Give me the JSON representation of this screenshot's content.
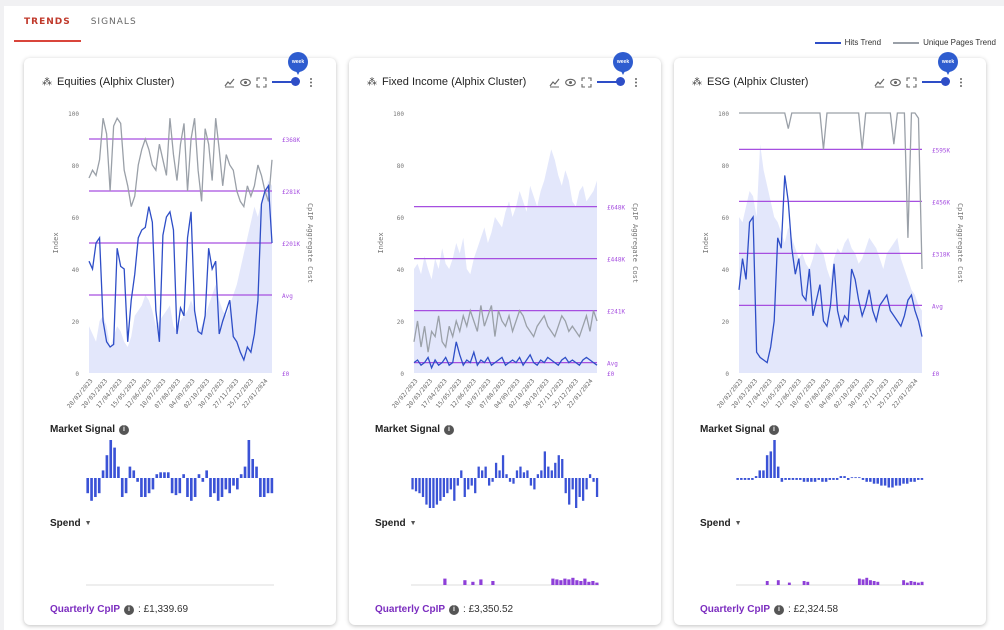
{
  "tabs": [
    {
      "label": "TRENDS",
      "active": true
    },
    {
      "label": "SIGNALS",
      "active": false
    }
  ],
  "legend": [
    {
      "label": "Hits Trend",
      "color": "#2e4ec7"
    },
    {
      "label": "Unique Pages Trend",
      "color": "#9aa0a8"
    }
  ],
  "pin_label": "week",
  "cards": [
    {
      "title": "Equities (Alphix Cluster)",
      "market_signal_label": "Market Signal",
      "spend_label": "Spend",
      "cpip_label": "Quarterly CpIP",
      "cpip_value": ": £1,339.69"
    },
    {
      "title": "Fixed Income (Alphix Cluster)",
      "market_signal_label": "Market Signal",
      "spend_label": "Spend",
      "cpip_label": "Quarterly CpIP",
      "cpip_value": ": £3,350.52"
    },
    {
      "title": "ESG (Alphix Cluster)",
      "market_signal_label": "Market Signal",
      "spend_label": "Spend",
      "cpip_label": "Quarterly CpIP",
      "cpip_value": ": £2,324.58"
    }
  ],
  "colors": {
    "hits": "#2e4ec7",
    "unique_pages": "#9aa0a8",
    "area": "#e3e7fb",
    "reference": "#a64fe0",
    "signal": "#3a52d6",
    "spend": "#8e3fd8",
    "cpip_label": "#7b2cbf"
  },
  "chart_data": [
    {
      "type": "line",
      "title": "Equities (Alphix Cluster)",
      "ylabel": "Index",
      "y2label": "CpIP Aggregate Cost",
      "ylim": [
        0,
        100
      ],
      "yticks": [
        0,
        20,
        40,
        60,
        80,
        100
      ],
      "x_ticks": [
        "20/02/2023",
        "20/03/2023",
        "17/04/2023",
        "15/05/2023",
        "12/06/2023",
        "10/07/2023",
        "07/08/2023",
        "04/09/2023",
        "02/10/2023",
        "30/10/2023",
        "27/11/2023",
        "25/12/2023",
        "22/01/2024"
      ],
      "reference_lines": [
        {
          "y": 90,
          "label": "£368K"
        },
        {
          "y": 70,
          "label": "£281K"
        },
        {
          "y": 50,
          "label": "£201K"
        },
        {
          "y": 30,
          "label": "Avg"
        },
        {
          "y": 0,
          "label": "£0"
        }
      ],
      "series": [
        {
          "name": "Hits Trend",
          "values": [
            43,
            40,
            50,
            52,
            20,
            12,
            10,
            11,
            48,
            41,
            40,
            12,
            28,
            38,
            52,
            55,
            56,
            64,
            58,
            24,
            12,
            53,
            60,
            62,
            55,
            15,
            25,
            22,
            52,
            62,
            24,
            16,
            15,
            22,
            48,
            40,
            43,
            15,
            20,
            24,
            28,
            14,
            12,
            8,
            5,
            10,
            8,
            15,
            28,
            65,
            70,
            72,
            50
          ]
        },
        {
          "name": "Unique Pages Trend",
          "values": [
            75,
            78,
            76,
            82,
            98,
            92,
            70,
            95,
            98,
            96,
            78,
            72,
            64,
            68,
            80,
            86,
            90,
            86,
            80,
            78,
            88,
            82,
            76,
            98,
            84,
            74,
            88,
            96,
            70,
            90,
            98,
            78,
            66,
            94,
            88,
            74,
            98,
            86,
            72,
            84,
            80,
            78,
            70,
            66,
            64,
            72,
            68,
            72,
            80,
            76,
            70,
            66,
            82
          ]
        },
        {
          "name": "Area",
          "values": [
            18,
            15,
            12,
            20,
            22,
            18,
            10,
            14,
            18,
            16,
            12,
            10,
            14,
            22,
            24,
            26,
            30,
            28,
            24,
            18,
            20,
            22,
            24,
            26,
            18,
            16,
            20,
            22,
            24,
            28,
            24,
            16,
            18,
            22,
            26,
            30,
            34,
            28,
            24,
            22,
            26,
            30,
            34,
            40,
            46,
            52,
            58,
            64,
            60,
            66,
            70,
            74,
            72
          ]
        }
      ]
    },
    {
      "type": "line",
      "title": "Fixed Income (Alphix Cluster)",
      "ylabel": "Index",
      "y2label": "CpIP Aggregate Cost",
      "ylim": [
        0,
        100
      ],
      "yticks": [
        0,
        20,
        40,
        60,
        80,
        100
      ],
      "x_ticks": [
        "20/02/2023",
        "20/03/2023",
        "17/04/2023",
        "15/05/2023",
        "12/06/2023",
        "10/07/2023",
        "07/08/2023",
        "04/09/2023",
        "02/10/2023",
        "30/10/2023",
        "27/11/2023",
        "25/12/2023",
        "22/01/2024"
      ],
      "reference_lines": [
        {
          "y": 64,
          "label": "£648K"
        },
        {
          "y": 44,
          "label": "£448K"
        },
        {
          "y": 24,
          "label": "£241K"
        },
        {
          "y": 4,
          "label": "Avg"
        },
        {
          "y": 0,
          "label": "£0"
        }
      ],
      "series": [
        {
          "name": "Hits Trend",
          "values": [
            4,
            5,
            3,
            4,
            6,
            2,
            5,
            3,
            4,
            6,
            3,
            4,
            12,
            7,
            3,
            5,
            4,
            8,
            3,
            5,
            4,
            6,
            3,
            4,
            5,
            6,
            3,
            4,
            5,
            4,
            6,
            3,
            5,
            7,
            4,
            3,
            5,
            4,
            6,
            5,
            4,
            3,
            5,
            6,
            4,
            5,
            4,
            3,
            5,
            6,
            5,
            4,
            3
          ]
        },
        {
          "name": "Unique Pages Trend",
          "values": [
            12,
            20,
            10,
            18,
            8,
            16,
            14,
            22,
            12,
            10,
            18,
            14,
            20,
            16,
            22,
            18,
            24,
            20,
            16,
            26,
            18,
            22,
            26,
            14,
            24,
            20,
            18,
            22,
            16,
            20,
            24,
            22,
            18,
            16,
            14,
            18,
            20,
            22,
            18,
            16,
            14,
            18,
            22,
            20,
            16,
            18,
            16,
            14,
            18,
            22,
            16,
            24,
            20
          ]
        },
        {
          "name": "Area",
          "values": [
            40,
            42,
            38,
            45,
            40,
            36,
            44,
            40,
            48,
            42,
            40,
            44,
            50,
            46,
            52,
            40,
            38,
            44,
            48,
            52,
            56,
            50,
            54,
            60,
            58,
            56,
            62,
            66,
            60,
            64,
            70,
            66,
            62,
            72,
            68,
            64,
            70,
            74,
            80,
            86,
            82,
            76,
            72,
            78,
            74,
            66,
            64,
            70,
            72,
            66,
            68,
            70,
            74
          ]
        }
      ]
    },
    {
      "type": "line",
      "title": "ESG (Alphix Cluster)",
      "ylabel": "Index",
      "y2label": "CpIP Aggregate Cost",
      "ylim": [
        0,
        100
      ],
      "yticks": [
        0,
        20,
        40,
        60,
        80,
        100
      ],
      "x_ticks": [
        "20/02/2023",
        "20/03/2023",
        "17/04/2023",
        "15/05/2023",
        "12/06/2023",
        "10/07/2023",
        "07/08/2023",
        "04/09/2023",
        "02/10/2023",
        "30/10/2023",
        "27/11/2023",
        "25/12/2023",
        "22/01/2024"
      ],
      "reference_lines": [
        {
          "y": 86,
          "label": "£595K"
        },
        {
          "y": 66,
          "label": "£456K"
        },
        {
          "y": 46,
          "label": "£318K"
        },
        {
          "y": 26,
          "label": "Avg"
        },
        {
          "y": 0,
          "label": "£0"
        }
      ],
      "series": [
        {
          "name": "Hits Trend",
          "values": [
            32,
            44,
            36,
            58,
            60,
            8,
            6,
            5,
            4,
            10,
            20,
            52,
            48,
            76,
            66,
            48,
            38,
            44,
            30,
            28,
            40,
            22,
            28,
            34,
            20,
            18,
            26,
            42,
            24,
            18,
            22,
            20,
            40,
            36,
            28,
            22,
            26,
            32,
            24,
            20,
            26,
            28,
            30,
            24,
            22,
            20,
            18,
            22,
            28,
            30,
            24,
            20,
            14
          ]
        },
        {
          "name": "Unique Pages Trend",
          "values": [
            100,
            100,
            100,
            100,
            100,
            100,
            100,
            100,
            100,
            100,
            100,
            100,
            100,
            100,
            94,
            100,
            100,
            100,
            100,
            100,
            100,
            100,
            100,
            100,
            86,
            100,
            100,
            100,
            100,
            100,
            100,
            100,
            100,
            100,
            100,
            86,
            100,
            100,
            100,
            100,
            100,
            100,
            100,
            100,
            88,
            100,
            100,
            100,
            52,
            100,
            100,
            98,
            40
          ]
        },
        {
          "name": "Area",
          "values": [
            60,
            58,
            64,
            70,
            68,
            60,
            88,
            78,
            72,
            66,
            60,
            58,
            54,
            50,
            56,
            52,
            48,
            44,
            46,
            42,
            40,
            44,
            50,
            48,
            46,
            40,
            36,
            44,
            48,
            46,
            50,
            52,
            48,
            46,
            42,
            44,
            48,
            52,
            50,
            48,
            44,
            40,
            46,
            48,
            50,
            52,
            44,
            40,
            36,
            32,
            30,
            26,
            24
          ]
        }
      ]
    }
  ],
  "market_signal": [
    [
      -0.4,
      -0.6,
      -0.5,
      -0.4,
      0.2,
      0.6,
      1.0,
      0.8,
      0.3,
      -0.5,
      -0.4,
      0.3,
      0.2,
      -0.1,
      -0.5,
      -0.5,
      -0.4,
      -0.3,
      0.1,
      0.15,
      0.15,
      0.15,
      -0.4,
      -0.45,
      -0.4,
      0.1,
      -0.5,
      -0.6,
      -0.5,
      0.1,
      -0.1,
      0.2,
      -0.5,
      -0.4,
      -0.6,
      -0.5,
      -0.3,
      -0.4,
      -0.2,
      -0.3,
      0.1,
      0.3,
      1.0,
      0.5,
      0.3,
      -0.5,
      -0.5,
      -0.4,
      -0.4
    ],
    [
      -0.3,
      -0.35,
      -0.4,
      -0.5,
      -0.7,
      -0.9,
      -0.8,
      -0.7,
      -0.6,
      -0.5,
      -0.4,
      -0.3,
      -0.6,
      -0.2,
      0.2,
      -0.5,
      -0.3,
      -0.2,
      -0.4,
      0.3,
      0.2,
      0.3,
      -0.2,
      -0.1,
      0.4,
      0.2,
      0.6,
      0.1,
      -0.1,
      -0.15,
      0.2,
      0.3,
      0.15,
      0.2,
      -0.2,
      -0.3,
      0.1,
      0.2,
      0.7,
      0.3,
      0.2,
      0.4,
      0.6,
      0.5,
      -0.4,
      -0.7,
      -0.3,
      -0.9,
      -0.5,
      -0.6,
      -0.3,
      0.1,
      -0.1,
      -0.5
    ],
    [
      -0.05,
      -0.05,
      -0.05,
      -0.05,
      -0.05,
      0.05,
      0.2,
      0.2,
      0.6,
      0.7,
      1.0,
      0.3,
      -0.1,
      -0.05,
      -0.05,
      -0.05,
      -0.05,
      -0.05,
      -0.1,
      -0.1,
      -0.1,
      -0.1,
      -0.05,
      -0.1,
      -0.1,
      -0.05,
      -0.05,
      -0.05,
      0.05,
      0.05,
      -0.05,
      0.02,
      0.02,
      0.02,
      -0.05,
      -0.1,
      -0.1,
      -0.15,
      -0.15,
      -0.2,
      -0.2,
      -0.25,
      -0.25,
      -0.2,
      -0.2,
      -0.15,
      -0.15,
      -0.1,
      -0.1,
      -0.05,
      -0.05
    ]
  ],
  "spend": [
    [],
    [
      0,
      0,
      0,
      0,
      0,
      0,
      0,
      0,
      0.8,
      0,
      0,
      0,
      0,
      0.6,
      0,
      0.4,
      0,
      0.7,
      0,
      0,
      0.5,
      0,
      0,
      0,
      0,
      0,
      0,
      0,
      0,
      0,
      0,
      0,
      0,
      0,
      0,
      0.8,
      0.7,
      0.6,
      0.8,
      0.7,
      0.9,
      0.6,
      0.5,
      0.8,
      0.4,
      0.5,
      0.3
    ],
    [
      0,
      0,
      0,
      0,
      0,
      0,
      0,
      0,
      0.5,
      0,
      0,
      0.6,
      0,
      0,
      0.3,
      0,
      0,
      0,
      0.5,
      0.4,
      0,
      0,
      0,
      0,
      0,
      0,
      0,
      0,
      0,
      0,
      0,
      0,
      0,
      0.8,
      0.7,
      0.9,
      0.6,
      0.5,
      0.4,
      0,
      0,
      0,
      0,
      0,
      0,
      0.6,
      0.3,
      0.5,
      0.4,
      0.3,
      0.4
    ]
  ]
}
